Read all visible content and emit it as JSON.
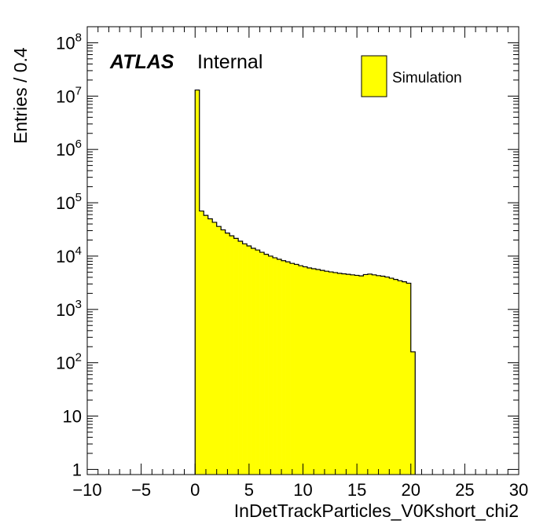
{
  "chart_data": {
    "type": "histogram",
    "xlabel": "InDetTrackParticles_V0Kshort_chi2",
    "ylabel": "Entries / 0.4",
    "xlim": [
      -10,
      30
    ],
    "ylim": [
      0.8,
      200000000
    ],
    "yscale": "log",
    "grid": false,
    "x_ticks": [
      "−10",
      "−5",
      "0",
      "5",
      "10",
      "15",
      "20",
      "25",
      "30"
    ],
    "x_tick_values": [
      -10,
      -5,
      0,
      5,
      10,
      15,
      20,
      25,
      30
    ],
    "y_ticks": [
      {
        "value": 1,
        "base": "1",
        "exp": ""
      },
      {
        "value": 10,
        "base": "10",
        "exp": ""
      },
      {
        "value": 100,
        "base": "10",
        "exp": "2"
      },
      {
        "value": 1000,
        "base": "10",
        "exp": "3"
      },
      {
        "value": 10000,
        "base": "10",
        "exp": "4"
      },
      {
        "value": 100000,
        "base": "10",
        "exp": "5"
      },
      {
        "value": 1000000,
        "base": "10",
        "exp": "6"
      },
      {
        "value": 10000000,
        "base": "10",
        "exp": "7"
      },
      {
        "value": 100000000,
        "base": "10",
        "exp": "8"
      }
    ],
    "bin_width": 0.4,
    "series": [
      {
        "name": "Simulation",
        "color": "#ffff00",
        "edge_color": "#000000",
        "bin_start": 0,
        "values": [
          13000000,
          70000,
          58000,
          50000,
          43000,
          36000,
          31000,
          27000,
          24000,
          21500,
          19000,
          17000,
          15500,
          14000,
          13000,
          11800,
          10800,
          10000,
          9300,
          8700,
          8200,
          7800,
          7300,
          7000,
          6600,
          6300,
          6000,
          5800,
          5600,
          5400,
          5200,
          5050,
          4900,
          4750,
          4650,
          4550,
          4450,
          4350,
          4250,
          4500,
          4600,
          4450,
          4300,
          4200,
          4050,
          3850,
          3650,
          3450,
          3300,
          3100,
          160
        ]
      }
    ],
    "legend": {
      "position": "top-right",
      "entries": [
        "Simulation"
      ]
    },
    "annotation": {
      "atlas": "ATLAS",
      "status": "Internal"
    }
  }
}
